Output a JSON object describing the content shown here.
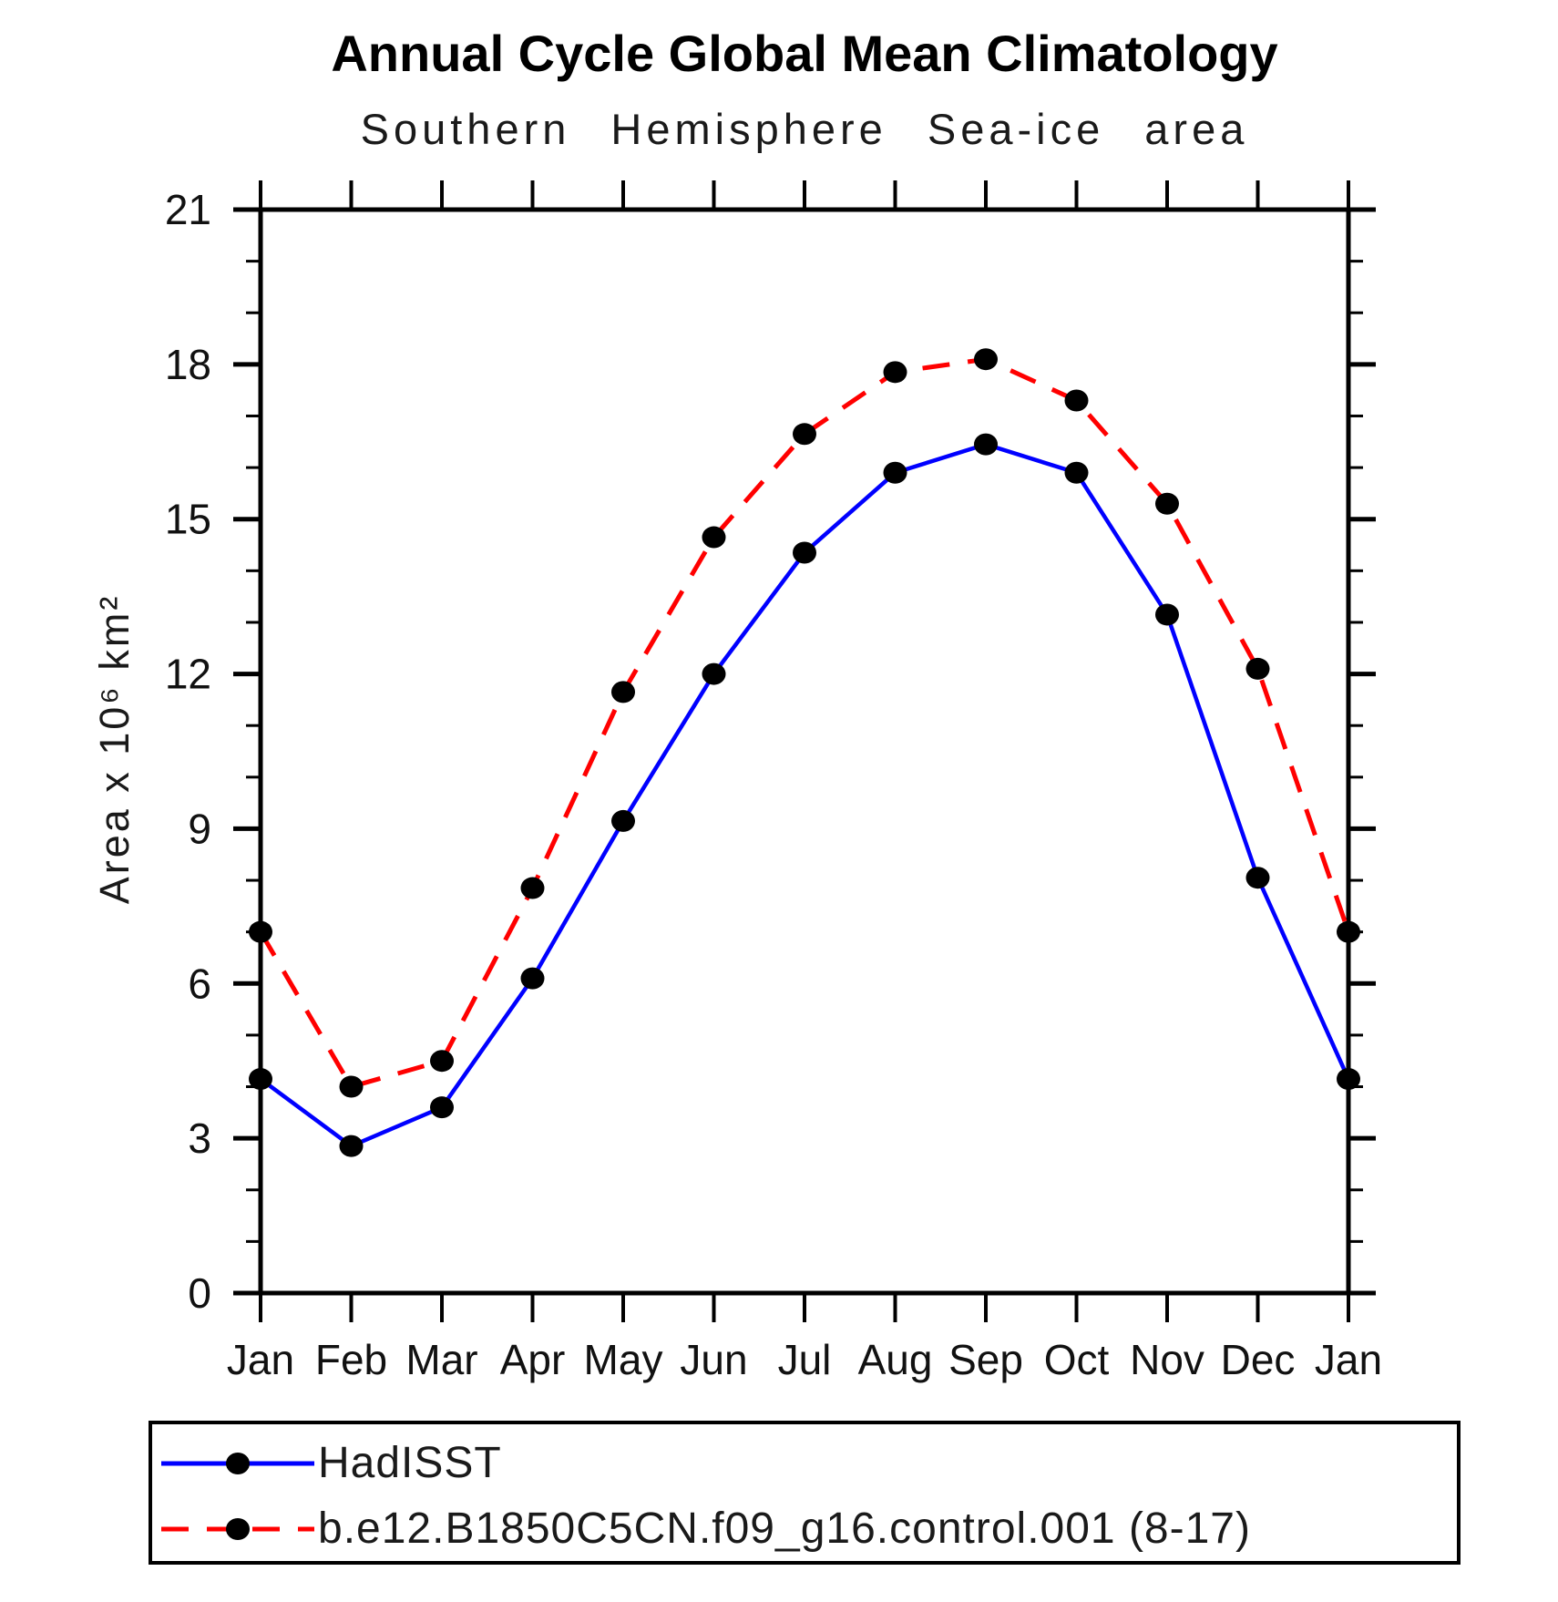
{
  "page": {
    "title": "Annual Cycle Global Mean Climatology",
    "subtitle": "Southern Hemisphere Sea-ice area"
  },
  "chart_data": {
    "type": "line",
    "title": "Annual Cycle Global Mean Climatology",
    "subtitle": "Southern Hemisphere Sea-ice area",
    "xlabel": "",
    "ylabel": "Area x 10⁶ km²",
    "x_tick_labels": [
      "Jan",
      "Feb",
      "Mar",
      "Apr",
      "May",
      "Jun",
      "Jul",
      "Aug",
      "Sep",
      "Oct",
      "Nov",
      "Dec",
      "Jan"
    ],
    "ylim": [
      0,
      21
    ],
    "y_major_ticks": [
      0,
      3,
      6,
      9,
      12,
      15,
      18,
      21
    ],
    "y_minor_tick_step": 1,
    "grid": false,
    "legend_position": "bottom",
    "colors": {
      "hadisst_line": "#0000ff",
      "model_line": "#ff0000",
      "marker": "#000000",
      "axis": "#000000"
    },
    "series": [
      {
        "name": "HadISST",
        "color": "#0000ff",
        "line_style": "solid",
        "marker": "circle",
        "marker_color": "#000000",
        "values": [
          4.15,
          2.85,
          3.6,
          6.1,
          9.15,
          12.0,
          14.35,
          15.9,
          16.45,
          15.9,
          13.15,
          8.05,
          4.15
        ]
      },
      {
        "name": "b.e12.B1850C5CN.f09_g16.control.001 (8-17)",
        "color": "#ff0000",
        "line_style": "dashed",
        "marker": "circle",
        "marker_color": "#000000",
        "values": [
          7.0,
          4.0,
          4.5,
          7.85,
          11.65,
          14.65,
          16.65,
          17.85,
          18.1,
          17.3,
          15.3,
          12.1,
          7.0
        ]
      }
    ]
  }
}
